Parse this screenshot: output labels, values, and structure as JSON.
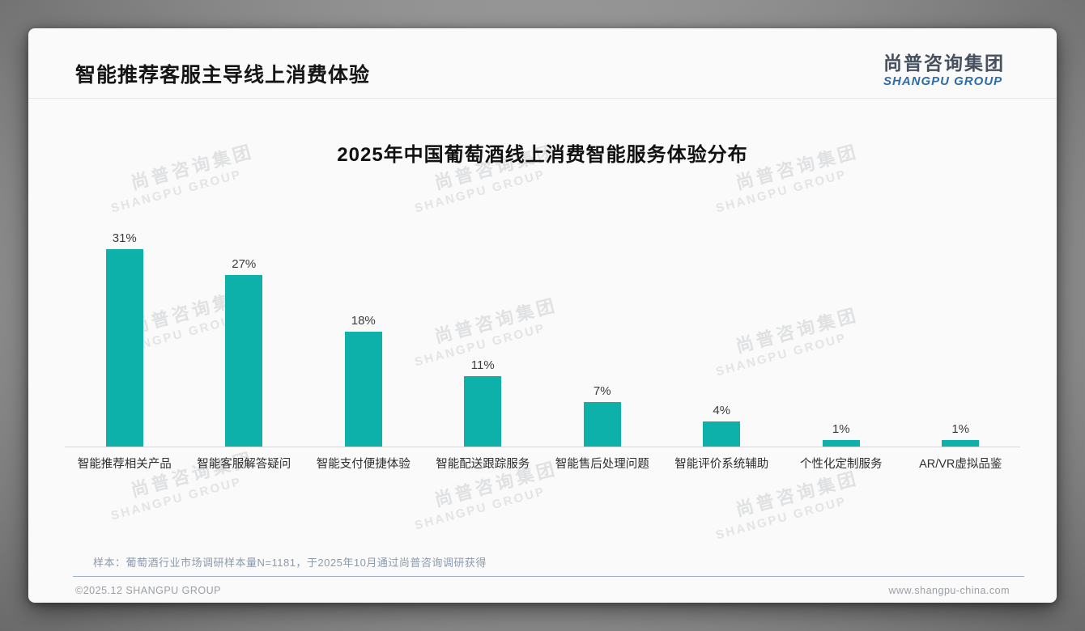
{
  "header": {
    "title": "智能推荐客服主导线上消费体验",
    "logo": {
      "cn": "尚普咨询集团",
      "en": "SHANGPU GROUP"
    }
  },
  "watermark": {
    "cn": "尚普咨询集团",
    "en": "SHANGPU GROUP"
  },
  "footnote": "样本：葡萄酒行业市场调研样本量N=1181，于2025年10月通过尚普咨询调研获得",
  "footer": {
    "copyright": "©2025.12 SHANGPU GROUP",
    "website": "www.shangpu-china.com"
  },
  "colors": {
    "bar": "#0db1aa",
    "logo_blue": "#2f6cab",
    "logo_dark": "#47505f",
    "footer_divider": "#9db0c6"
  },
  "chart_data": {
    "type": "bar",
    "title": "2025年中国葡萄酒线上消费智能服务体验分布",
    "categories": [
      "智能推荐相关产品",
      "智能客服解答疑问",
      "智能支付便捷体验",
      "智能配送跟踪服务",
      "智能售后处理问题",
      "智能评价系统辅助",
      "个性化定制服务",
      "AR/VR虚拟品鉴"
    ],
    "values": [
      31,
      27,
      18,
      11,
      7,
      4,
      1,
      1
    ],
    "value_labels": [
      "31%",
      "27%",
      "18%",
      "11%",
      "7%",
      "4%",
      "1%",
      "1%"
    ],
    "bar_color": "#0db1aa",
    "xlabel": "",
    "ylabel": "",
    "ylim": [
      0,
      33
    ],
    "grid": false,
    "legend": "none"
  }
}
